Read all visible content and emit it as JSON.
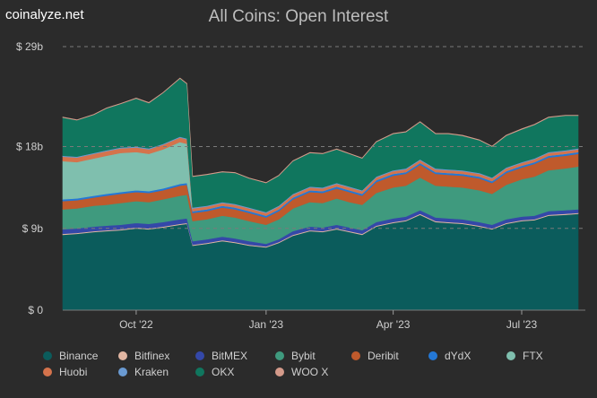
{
  "brand": "coinalyze.net",
  "chart_data": {
    "type": "area",
    "stacked": true,
    "title": "All Coins: Open Interest",
    "x": [
      "2022-08-10",
      "2022-08-20",
      "2022-09-01",
      "2022-09-10",
      "2022-09-20",
      "2022-10-01",
      "2022-10-10",
      "2022-10-20",
      "2022-11-01",
      "2022-11-06",
      "2022-11-10",
      "2022-11-20",
      "2022-12-01",
      "2022-12-10",
      "2022-12-20",
      "2023-01-01",
      "2023-01-10",
      "2023-01-20",
      "2023-02-01",
      "2023-02-10",
      "2023-02-20",
      "2023-03-01",
      "2023-03-10",
      "2023-03-20",
      "2023-04-01",
      "2023-04-10",
      "2023-04-20",
      "2023-05-01",
      "2023-05-10",
      "2023-05-20",
      "2023-06-01",
      "2023-06-10",
      "2023-06-20",
      "2023-07-01",
      "2023-07-10",
      "2023-07-20",
      "2023-08-01",
      "2023-08-10"
    ],
    "xticks": [
      {
        "label": "Oct '22",
        "date": "2022-10-01"
      },
      {
        "label": "Jan '23",
        "date": "2023-01-01"
      },
      {
        "label": "Apr '23",
        "date": "2023-04-01"
      },
      {
        "label": "Jul '23",
        "date": "2023-07-01"
      }
    ],
    "yticks": [
      {
        "label": "$ 0",
        "value": 0
      },
      {
        "label": "$ 9b",
        "value": 9
      },
      {
        "label": "$ 18b",
        "value": 18
      },
      {
        "label": "$ 29b",
        "value": 29
      }
    ],
    "ylim": [
      0,
      29
    ],
    "series": [
      {
        "name": "Binance",
        "color": "#0b5c5c",
        "values": [
          8.3,
          8.4,
          8.6,
          8.7,
          8.8,
          9.0,
          8.9,
          9.1,
          9.4,
          9.5,
          7.1,
          7.3,
          7.6,
          7.4,
          7.1,
          6.9,
          7.4,
          8.2,
          8.7,
          8.6,
          8.9,
          8.6,
          8.3,
          9.2,
          9.6,
          9.8,
          10.5,
          9.7,
          9.6,
          9.5,
          9.2,
          8.9,
          9.5,
          9.8,
          9.9,
          10.4,
          10.5,
          10.6
        ]
      },
      {
        "name": "Bitfinex",
        "color": "#e1b6a2",
        "values": [
          0.1,
          0.1,
          0.1,
          0.1,
          0.1,
          0.1,
          0.1,
          0.1,
          0.1,
          0.1,
          0.1,
          0.1,
          0.1,
          0.1,
          0.1,
          0.1,
          0.1,
          0.1,
          0.1,
          0.1,
          0.1,
          0.1,
          0.1,
          0.1,
          0.1,
          0.1,
          0.1,
          0.1,
          0.1,
          0.1,
          0.1,
          0.1,
          0.1,
          0.1,
          0.1,
          0.1,
          0.1,
          0.1
        ]
      },
      {
        "name": "BitMEX",
        "color": "#3448a8",
        "values": [
          0.5,
          0.5,
          0.5,
          0.5,
          0.5,
          0.5,
          0.5,
          0.5,
          0.5,
          0.5,
          0.4,
          0.4,
          0.4,
          0.4,
          0.4,
          0.3,
          0.3,
          0.4,
          0.4,
          0.4,
          0.4,
          0.4,
          0.4,
          0.4,
          0.4,
          0.4,
          0.4,
          0.4,
          0.4,
          0.4,
          0.4,
          0.4,
          0.4,
          0.4,
          0.4,
          0.4,
          0.4,
          0.4
        ]
      },
      {
        "name": "Bybit",
        "color": "#3f9a7e",
        "values": [
          2.2,
          2.2,
          2.3,
          2.3,
          2.4,
          2.4,
          2.4,
          2.5,
          2.6,
          2.6,
          2.2,
          2.2,
          2.3,
          2.3,
          2.2,
          2.1,
          2.2,
          2.5,
          2.7,
          2.7,
          2.9,
          2.8,
          2.8,
          3.2,
          3.4,
          3.4,
          3.6,
          3.5,
          3.5,
          3.5,
          3.5,
          3.4,
          3.8,
          4.1,
          4.3,
          4.5,
          4.6,
          4.7
        ]
      },
      {
        "name": "Deribit",
        "color": "#bf5a2c",
        "values": [
          0.9,
          0.9,
          0.9,
          1.0,
          1.0,
          1.0,
          1.0,
          1.0,
          1.1,
          1.1,
          0.9,
          0.9,
          0.9,
          0.9,
          0.9,
          0.8,
          0.9,
          1.0,
          1.1,
          1.1,
          1.1,
          1.1,
          1.0,
          1.2,
          1.3,
          1.3,
          1.4,
          1.3,
          1.3,
          1.3,
          1.3,
          1.2,
          1.3,
          1.3,
          1.4,
          1.4,
          1.4,
          1.4
        ]
      },
      {
        "name": "dYdX",
        "color": "#2478d6",
        "values": [
          0.2,
          0.2,
          0.2,
          0.2,
          0.2,
          0.2,
          0.2,
          0.2,
          0.2,
          0.2,
          0.2,
          0.2,
          0.2,
          0.2,
          0.2,
          0.2,
          0.2,
          0.2,
          0.2,
          0.2,
          0.2,
          0.2,
          0.2,
          0.2,
          0.2,
          0.2,
          0.2,
          0.2,
          0.2,
          0.2,
          0.2,
          0.2,
          0.2,
          0.2,
          0.2,
          0.2,
          0.2,
          0.2
        ]
      },
      {
        "name": "FTX",
        "color": "#7fbfae",
        "values": [
          4.2,
          4.0,
          4.1,
          4.2,
          4.3,
          4.2,
          4.1,
          4.3,
          4.6,
          4.3,
          0,
          0,
          0,
          0,
          0,
          0,
          0,
          0,
          0,
          0,
          0,
          0,
          0,
          0,
          0,
          0,
          0,
          0,
          0,
          0,
          0,
          0,
          0,
          0,
          0,
          0,
          0,
          0
        ]
      },
      {
        "name": "Huobi",
        "color": "#d4734c",
        "values": [
          0.5,
          0.5,
          0.5,
          0.5,
          0.5,
          0.5,
          0.5,
          0.5,
          0.5,
          0.5,
          0.3,
          0.3,
          0.3,
          0.3,
          0.3,
          0.3,
          0.3,
          0.3,
          0.3,
          0.3,
          0.3,
          0.3,
          0.3,
          0.3,
          0.3,
          0.3,
          0.3,
          0.3,
          0.3,
          0.3,
          0.3,
          0.3,
          0.3,
          0.3,
          0.3,
          0.3,
          0.3,
          0.3
        ]
      },
      {
        "name": "Kraken",
        "color": "#6a9ad2",
        "values": [
          0.1,
          0.1,
          0.1,
          0.1,
          0.1,
          0.1,
          0.1,
          0.1,
          0.1,
          0.1,
          0.1,
          0.1,
          0.1,
          0.1,
          0.1,
          0.1,
          0.1,
          0.1,
          0.1,
          0.1,
          0.1,
          0.1,
          0.1,
          0.1,
          0.1,
          0.1,
          0.1,
          0.1,
          0.1,
          0.1,
          0.1,
          0.1,
          0.1,
          0.1,
          0.1,
          0.1,
          0.1,
          0.1
        ]
      },
      {
        "name": "OKX",
        "color": "#10765e",
        "values": [
          4.2,
          4.0,
          4.2,
          4.6,
          4.8,
          5.3,
          5.0,
          5.6,
          6.4,
          6.0,
          3.4,
          3.4,
          3.3,
          3.4,
          3.2,
          3.2,
          3.3,
          3.6,
          3.7,
          3.7,
          3.7,
          3.6,
          3.5,
          3.8,
          4.0,
          4.0,
          4.1,
          3.8,
          3.9,
          3.8,
          3.6,
          3.4,
          3.5,
          3.6,
          3.7,
          3.8,
          3.8,
          3.6
        ]
      },
      {
        "name": "WOO X",
        "color": "#d49a8a",
        "values": [
          0.05,
          0.05,
          0.05,
          0.05,
          0.05,
          0.05,
          0.05,
          0.05,
          0.05,
          0.05,
          0.05,
          0.05,
          0.05,
          0.05,
          0.05,
          0.05,
          0.05,
          0.05,
          0.05,
          0.05,
          0.05,
          0.05,
          0.05,
          0.05,
          0.05,
          0.05,
          0.05,
          0.05,
          0.05,
          0.05,
          0.05,
          0.05,
          0.05,
          0.05,
          0.05,
          0.05,
          0.05,
          0.05
        ]
      }
    ]
  }
}
